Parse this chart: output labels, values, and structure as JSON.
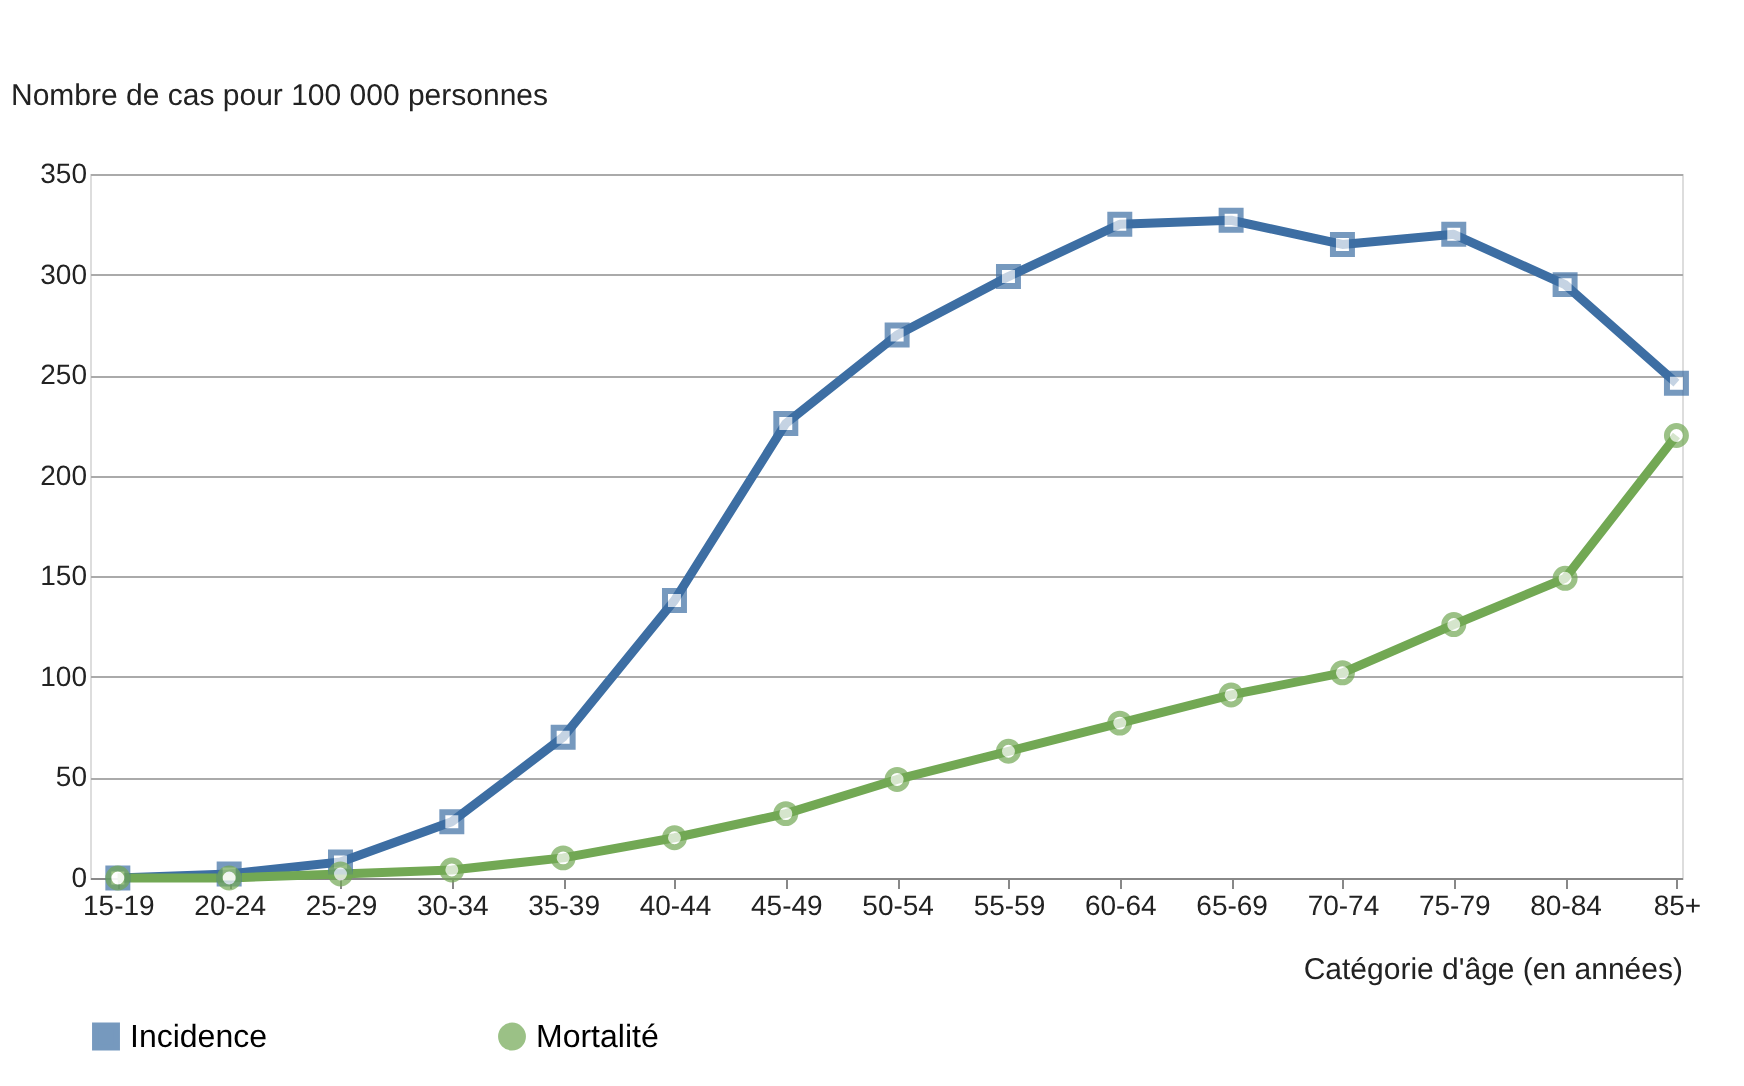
{
  "chart_data": {
    "type": "line",
    "ylabel": "Nombre de cas pour 100 000 personnes",
    "xlabel": "Catégorie d'âge (en années)",
    "categories": [
      "15-19",
      "20-24",
      "25-29",
      "30-34",
      "35-39",
      "40-44",
      "45-49",
      "50-54",
      "55-59",
      "60-64",
      "65-69",
      "70-74",
      "75-79",
      "80-84",
      "85+"
    ],
    "series": [
      {
        "name": "Incidence",
        "color": "#3d6ea3",
        "marker": "square",
        "values": [
          0,
          2,
          8,
          28,
          70,
          138,
          226,
          270,
          299,
          325,
          327,
          315,
          320,
          295,
          246
        ]
      },
      {
        "name": "Mortalité",
        "color": "#72a854",
        "marker": "circle",
        "values": [
          0,
          0,
          2,
          4,
          10,
          20,
          32,
          49,
          63,
          77,
          91,
          102,
          126,
          149,
          220
        ]
      }
    ],
    "ylim": [
      0,
      350
    ],
    "yticks": [
      0,
      50,
      100,
      150,
      200,
      250,
      300,
      350
    ],
    "grid": "y",
    "legend": "bottom",
    "line_style": "solid"
  }
}
